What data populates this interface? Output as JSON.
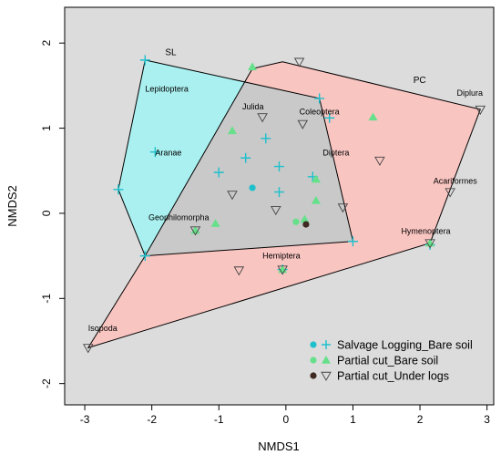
{
  "chart_data": {
    "type": "scatter",
    "xlabel": "NMDS1",
    "ylabel": "NMDS2",
    "xlim": [
      -3.3,
      3.1
    ],
    "ylim": [
      -2.25,
      2.42
    ],
    "x_ticks": [
      -3,
      -2,
      -1,
      0,
      1,
      2,
      3
    ],
    "y_ticks": [
      -2,
      -1,
      0,
      1,
      2
    ],
    "grid": false,
    "legend_position": "bottom-right",
    "legend": [
      {
        "label": "Salvage Logging_Bare soil",
        "color": "#1ec0cc"
      },
      {
        "label": "Partial cut_Bare soil",
        "color": "#66e08a"
      },
      {
        "label": "Partial cut_Under logs",
        "color": "#3e2a22"
      }
    ],
    "hulls": [
      {
        "label": "SL",
        "label_x": -1.8,
        "label_y": 1.86,
        "fill": "#aaf0f0",
        "points": [
          [
            -2.1,
            1.8
          ],
          [
            0.5,
            1.35
          ],
          [
            1.0,
            -0.33
          ],
          [
            -2.1,
            -0.5
          ],
          [
            -2.5,
            0.28
          ]
        ]
      },
      {
        "label": "PC",
        "label_x": 1.9,
        "label_y": 1.53,
        "fill": "#f9c5c1",
        "points": [
          [
            -0.5,
            1.7
          ],
          [
            -0.05,
            1.78
          ],
          [
            2.9,
            1.22
          ],
          [
            2.15,
            -0.35
          ],
          [
            -2.95,
            -1.58
          ],
          [
            -2.1,
            -0.5
          ]
        ]
      }
    ],
    "series": [
      {
        "name": "Salvage Logging_Bare soil",
        "circles": [
          [
            -0.5,
            0.3
          ]
        ],
        "pluses": [
          [
            -2.1,
            1.8
          ],
          [
            -1.95,
            0.72
          ],
          [
            -2.5,
            0.28
          ],
          [
            -2.1,
            -0.5
          ],
          [
            -0.6,
            0.65
          ],
          [
            -1.0,
            0.48
          ],
          [
            -0.3,
            0.88
          ],
          [
            -0.1,
            0.55
          ],
          [
            -0.1,
            0.25
          ],
          [
            0.4,
            0.43
          ],
          [
            0.5,
            1.35
          ],
          [
            0.65,
            1.12
          ],
          [
            1.0,
            -0.33
          ],
          [
            -0.05,
            -0.66
          ],
          [
            2.15,
            -0.37
          ]
        ]
      },
      {
        "name": "Partial cut_Bare soil",
        "circles": [
          [
            0.15,
            -0.1
          ]
        ],
        "triangles": [
          [
            -0.5,
            1.72
          ],
          [
            -0.8,
            0.97
          ],
          [
            1.3,
            1.13
          ],
          [
            -1.05,
            -0.12
          ],
          [
            -1.35,
            -0.2
          ],
          [
            0.28,
            -0.07
          ],
          [
            0.45,
            0.4
          ],
          [
            0.45,
            0.15
          ],
          [
            2.15,
            -0.35
          ],
          [
            -0.05,
            -0.66
          ]
        ]
      },
      {
        "name": "Partial cut_Under logs",
        "circles": [
          [
            0.3,
            -0.13
          ]
        ],
        "triangles": [
          [
            0.2,
            1.78
          ],
          [
            -0.35,
            1.13
          ],
          [
            0.25,
            1.05
          ],
          [
            2.9,
            1.22
          ],
          [
            1.4,
            0.62
          ],
          [
            2.45,
            0.25
          ],
          [
            -0.8,
            0.22
          ],
          [
            -0.15,
            0.04
          ],
          [
            0.85,
            0.07
          ],
          [
            -1.35,
            -0.2
          ],
          [
            -0.7,
            -0.67
          ],
          [
            2.15,
            -0.35
          ],
          [
            -2.95,
            -1.58
          ],
          [
            -0.05,
            -0.66
          ]
        ]
      }
    ],
    "annotations": [
      {
        "text": "Lepidoptera",
        "x": -2.1,
        "y": 1.43
      },
      {
        "text": "Aranae",
        "x": -1.95,
        "y": 0.68
      },
      {
        "text": "Julida",
        "x": -0.65,
        "y": 1.22
      },
      {
        "text": "Coleoptera",
        "x": 0.2,
        "y": 1.16
      },
      {
        "text": "Diptera",
        "x": 0.55,
        "y": 0.68
      },
      {
        "text": "Geophilomorpha",
        "x": -2.05,
        "y": -0.08
      },
      {
        "text": "Hemiptera",
        "x": -0.35,
        "y": -0.53
      },
      {
        "text": "Hymenoptera",
        "x": 1.72,
        "y": -0.24
      },
      {
        "text": "Acariformes",
        "x": 2.2,
        "y": 0.35
      },
      {
        "text": "Diplura",
        "x": 2.55,
        "y": 1.38
      },
      {
        "text": "Isopoda",
        "x": -2.95,
        "y": -1.38
      }
    ]
  }
}
